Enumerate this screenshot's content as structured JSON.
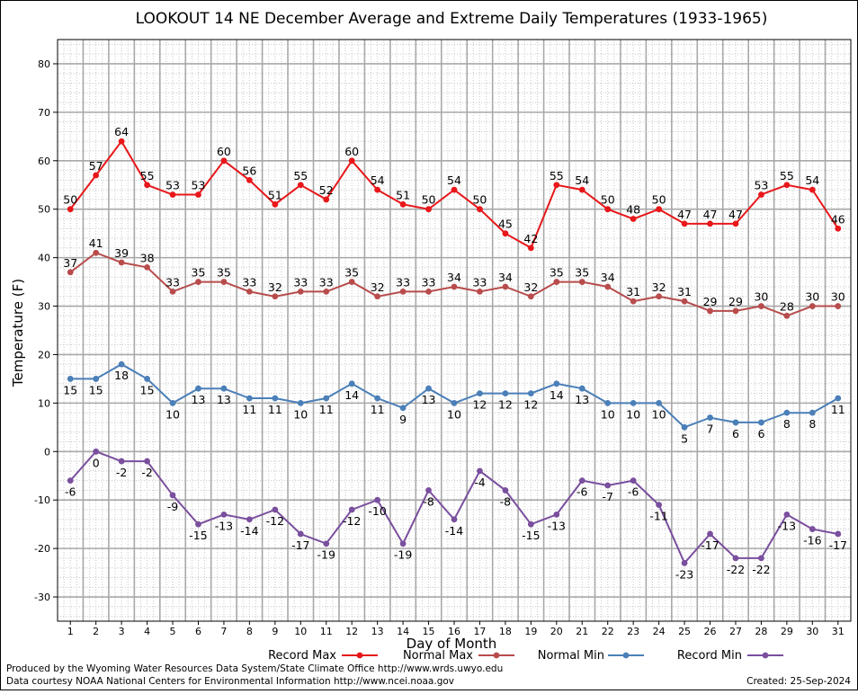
{
  "chart_data": {
    "type": "line",
    "title": "LOOKOUT 14 NE December Average and Extreme Daily Temperatures (1933-1965)",
    "xlabel": "Day of Month",
    "ylabel": "Temperature (F)",
    "ylim": [
      -35,
      85
    ],
    "xlim": [
      0.5,
      31.5
    ],
    "y_ticks": [
      -30,
      -20,
      -10,
      0,
      10,
      20,
      30,
      40,
      50,
      60,
      70,
      80
    ],
    "x": [
      1,
      2,
      3,
      4,
      5,
      6,
      7,
      8,
      9,
      10,
      11,
      12,
      13,
      14,
      15,
      16,
      17,
      18,
      19,
      20,
      21,
      22,
      23,
      24,
      25,
      26,
      27,
      28,
      29,
      30,
      31
    ],
    "grid": true,
    "legend_position": "bottom",
    "series": [
      {
        "name": "Record Max",
        "color": "#e8171a",
        "label_pos": "above",
        "values": [
          50,
          57,
          64,
          55,
          53,
          53,
          60,
          56,
          51,
          55,
          52,
          60,
          54,
          51,
          50,
          54,
          50,
          45,
          42,
          55,
          54,
          50,
          48,
          50,
          47,
          47,
          47,
          53,
          55,
          54,
          46
        ]
      },
      {
        "name": "Normal Max",
        "color": "#b84c4c",
        "label_pos": "above",
        "values": [
          37,
          41,
          39,
          38,
          33,
          35,
          35,
          33,
          32,
          33,
          33,
          35,
          32,
          33,
          33,
          34,
          33,
          34,
          32,
          35,
          35,
          34,
          31,
          32,
          31,
          29,
          29,
          30,
          28,
          30,
          30
        ]
      },
      {
        "name": "Normal Min",
        "color": "#4a7fb8",
        "label_pos": "below",
        "values": [
          15,
          15,
          18,
          15,
          10,
          13,
          13,
          11,
          11,
          10,
          11,
          14,
          11,
          9,
          13,
          10,
          12,
          12,
          12,
          14,
          13,
          10,
          10,
          10,
          5,
          7,
          6,
          6,
          8,
          8,
          11
        ]
      },
      {
        "name": "Record Min",
        "color": "#7a4f9e",
        "label_pos": "below",
        "values": [
          -6,
          0,
          -2,
          -2,
          -9,
          -15,
          -13,
          -14,
          -12,
          -17,
          -19,
          -12,
          -10,
          -19,
          -8,
          -14,
          -4,
          -8,
          -15,
          -13,
          -6,
          -7,
          -6,
          -11,
          -23,
          -17,
          -22,
          -22,
          -13,
          -16,
          -17
        ]
      }
    ]
  },
  "footer": {
    "produced_by": "Produced by the Wyoming Water Resources Data System/State Climate Office http://www.wrds.uwyo.edu",
    "courtesy": "Data courtesy NOAA National Centers for Environmental Information http://www.ncei.noaa.gov",
    "created": "Created:  25-Sep-2024"
  }
}
